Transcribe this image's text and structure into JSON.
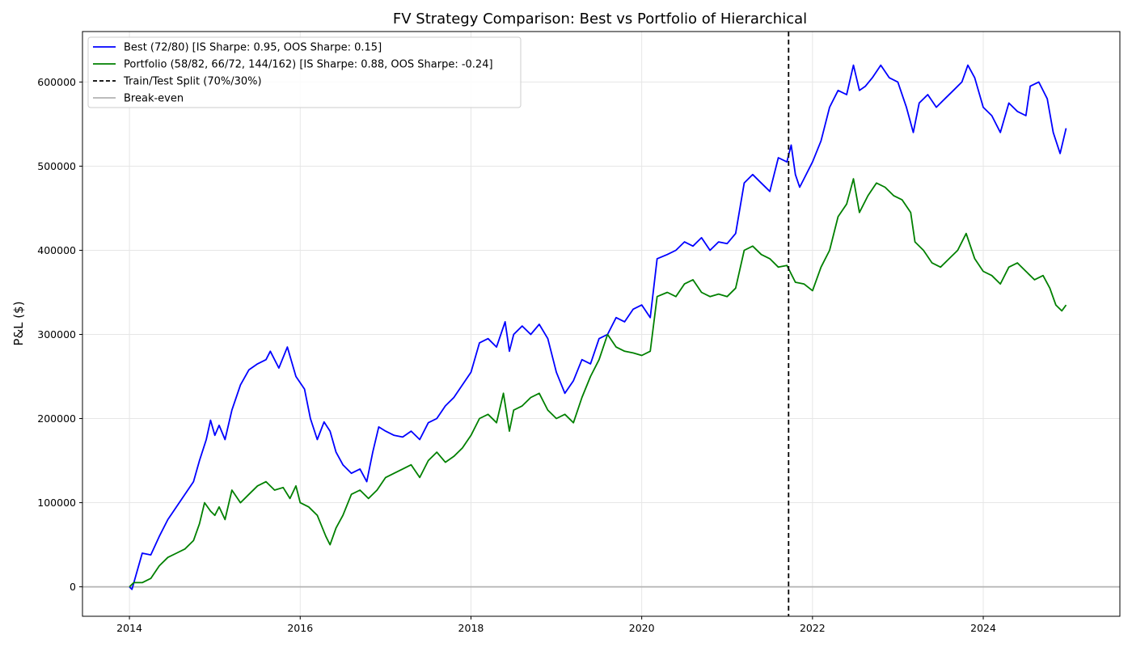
{
  "chart_data": {
    "type": "line",
    "title": "FV Strategy Comparison: Best vs Portfolio of Hierarchical",
    "xlabel": "",
    "ylabel": "P&L ($)",
    "xlim": [
      2013.45,
      2025.6
    ],
    "ylim": [
      -35000,
      660000
    ],
    "xticks": [
      2014,
      2016,
      2018,
      2020,
      2022,
      2024
    ],
    "yticks": [
      0,
      100000,
      200000,
      300000,
      400000,
      500000,
      600000
    ],
    "grid": true,
    "legend_position": "top-left",
    "split": {
      "x": 2021.72,
      "label": "Train/Test Split (70%/30%)",
      "color": "#000000"
    },
    "baseline": {
      "y": 0,
      "label": "Break-even",
      "color": "#b3b3b3"
    },
    "series": [
      {
        "name": "Best (72/80) [IS Sharpe: 0.95, OOS Sharpe: 0.15]",
        "color": "#0000ff",
        "points": [
          [
            2014.0,
            0
          ],
          [
            2014.03,
            -3000
          ],
          [
            2014.08,
            15000
          ],
          [
            2014.15,
            40000
          ],
          [
            2014.25,
            38000
          ],
          [
            2014.35,
            60000
          ],
          [
            2014.45,
            80000
          ],
          [
            2014.55,
            95000
          ],
          [
            2014.65,
            110000
          ],
          [
            2014.75,
            125000
          ],
          [
            2014.82,
            150000
          ],
          [
            2014.9,
            175000
          ],
          [
            2014.95,
            198000
          ],
          [
            2015.0,
            180000
          ],
          [
            2015.05,
            192000
          ],
          [
            2015.12,
            175000
          ],
          [
            2015.2,
            210000
          ],
          [
            2015.3,
            240000
          ],
          [
            2015.4,
            258000
          ],
          [
            2015.5,
            265000
          ],
          [
            2015.6,
            270000
          ],
          [
            2015.65,
            280000
          ],
          [
            2015.75,
            260000
          ],
          [
            2015.85,
            285000
          ],
          [
            2015.95,
            250000
          ],
          [
            2016.05,
            235000
          ],
          [
            2016.12,
            200000
          ],
          [
            2016.2,
            175000
          ],
          [
            2016.28,
            196000
          ],
          [
            2016.35,
            185000
          ],
          [
            2016.42,
            160000
          ],
          [
            2016.5,
            145000
          ],
          [
            2016.6,
            135000
          ],
          [
            2016.7,
            140000
          ],
          [
            2016.78,
            125000
          ],
          [
            2016.85,
            160000
          ],
          [
            2016.92,
            190000
          ],
          [
            2017.0,
            185000
          ],
          [
            2017.1,
            180000
          ],
          [
            2017.2,
            178000
          ],
          [
            2017.3,
            185000
          ],
          [
            2017.4,
            175000
          ],
          [
            2017.5,
            195000
          ],
          [
            2017.6,
            200000
          ],
          [
            2017.7,
            215000
          ],
          [
            2017.8,
            225000
          ],
          [
            2017.9,
            240000
          ],
          [
            2018.0,
            255000
          ],
          [
            2018.1,
            290000
          ],
          [
            2018.2,
            295000
          ],
          [
            2018.3,
            285000
          ],
          [
            2018.4,
            315000
          ],
          [
            2018.45,
            280000
          ],
          [
            2018.5,
            300000
          ],
          [
            2018.6,
            310000
          ],
          [
            2018.7,
            300000
          ],
          [
            2018.8,
            312000
          ],
          [
            2018.9,
            295000
          ],
          [
            2019.0,
            255000
          ],
          [
            2019.1,
            230000
          ],
          [
            2019.2,
            245000
          ],
          [
            2019.3,
            270000
          ],
          [
            2019.4,
            265000
          ],
          [
            2019.5,
            295000
          ],
          [
            2019.6,
            300000
          ],
          [
            2019.7,
            320000
          ],
          [
            2019.8,
            315000
          ],
          [
            2019.9,
            330000
          ],
          [
            2020.0,
            335000
          ],
          [
            2020.1,
            320000
          ],
          [
            2020.18,
            390000
          ],
          [
            2020.3,
            395000
          ],
          [
            2020.4,
            400000
          ],
          [
            2020.5,
            410000
          ],
          [
            2020.6,
            405000
          ],
          [
            2020.7,
            415000
          ],
          [
            2020.8,
            400000
          ],
          [
            2020.9,
            410000
          ],
          [
            2021.0,
            408000
          ],
          [
            2021.1,
            420000
          ],
          [
            2021.2,
            480000
          ],
          [
            2021.3,
            490000
          ],
          [
            2021.4,
            480000
          ],
          [
            2021.5,
            470000
          ],
          [
            2021.6,
            510000
          ],
          [
            2021.7,
            505000
          ],
          [
            2021.75,
            525000
          ],
          [
            2021.8,
            490000
          ],
          [
            2021.85,
            475000
          ],
          [
            2021.9,
            485000
          ],
          [
            2022.0,
            505000
          ],
          [
            2022.1,
            530000
          ],
          [
            2022.2,
            570000
          ],
          [
            2022.3,
            590000
          ],
          [
            2022.4,
            585000
          ],
          [
            2022.48,
            620000
          ],
          [
            2022.55,
            590000
          ],
          [
            2022.62,
            595000
          ],
          [
            2022.7,
            605000
          ],
          [
            2022.8,
            620000
          ],
          [
            2022.9,
            605000
          ],
          [
            2023.0,
            600000
          ],
          [
            2023.1,
            570000
          ],
          [
            2023.18,
            540000
          ],
          [
            2023.25,
            575000
          ],
          [
            2023.35,
            585000
          ],
          [
            2023.45,
            570000
          ],
          [
            2023.55,
            580000
          ],
          [
            2023.65,
            590000
          ],
          [
            2023.75,
            600000
          ],
          [
            2023.82,
            620000
          ],
          [
            2023.9,
            605000
          ],
          [
            2024.0,
            570000
          ],
          [
            2024.1,
            560000
          ],
          [
            2024.2,
            540000
          ],
          [
            2024.3,
            575000
          ],
          [
            2024.4,
            565000
          ],
          [
            2024.5,
            560000
          ],
          [
            2024.55,
            595000
          ],
          [
            2024.65,
            600000
          ],
          [
            2024.75,
            580000
          ],
          [
            2024.82,
            540000
          ],
          [
            2024.9,
            515000
          ],
          [
            2024.97,
            545000
          ]
        ]
      },
      {
        "name": "Portfolio (58/82, 66/72, 144/162) [IS Sharpe: 0.88, OOS Sharpe: -0.24]",
        "color": "#008000",
        "points": [
          [
            2014.0,
            0
          ],
          [
            2014.05,
            5000
          ],
          [
            2014.15,
            5000
          ],
          [
            2014.25,
            10000
          ],
          [
            2014.35,
            25000
          ],
          [
            2014.45,
            35000
          ],
          [
            2014.55,
            40000
          ],
          [
            2014.65,
            45000
          ],
          [
            2014.75,
            55000
          ],
          [
            2014.82,
            75000
          ],
          [
            2014.88,
            100000
          ],
          [
            2014.95,
            90000
          ],
          [
            2015.0,
            85000
          ],
          [
            2015.05,
            95000
          ],
          [
            2015.12,
            80000
          ],
          [
            2015.2,
            115000
          ],
          [
            2015.3,
            100000
          ],
          [
            2015.4,
            110000
          ],
          [
            2015.5,
            120000
          ],
          [
            2015.6,
            125000
          ],
          [
            2015.7,
            115000
          ],
          [
            2015.8,
            118000
          ],
          [
            2015.88,
            105000
          ],
          [
            2015.95,
            120000
          ],
          [
            2016.0,
            100000
          ],
          [
            2016.1,
            95000
          ],
          [
            2016.2,
            85000
          ],
          [
            2016.3,
            60000
          ],
          [
            2016.35,
            50000
          ],
          [
            2016.42,
            70000
          ],
          [
            2016.5,
            85000
          ],
          [
            2016.6,
            110000
          ],
          [
            2016.7,
            115000
          ],
          [
            2016.8,
            105000
          ],
          [
            2016.9,
            115000
          ],
          [
            2017.0,
            130000
          ],
          [
            2017.1,
            135000
          ],
          [
            2017.2,
            140000
          ],
          [
            2017.3,
            145000
          ],
          [
            2017.4,
            130000
          ],
          [
            2017.5,
            150000
          ],
          [
            2017.6,
            160000
          ],
          [
            2017.7,
            148000
          ],
          [
            2017.8,
            155000
          ],
          [
            2017.9,
            165000
          ],
          [
            2018.0,
            180000
          ],
          [
            2018.1,
            200000
          ],
          [
            2018.2,
            205000
          ],
          [
            2018.3,
            195000
          ],
          [
            2018.38,
            230000
          ],
          [
            2018.45,
            185000
          ],
          [
            2018.5,
            210000
          ],
          [
            2018.6,
            215000
          ],
          [
            2018.7,
            225000
          ],
          [
            2018.8,
            230000
          ],
          [
            2018.9,
            210000
          ],
          [
            2019.0,
            200000
          ],
          [
            2019.1,
            205000
          ],
          [
            2019.2,
            195000
          ],
          [
            2019.3,
            225000
          ],
          [
            2019.4,
            250000
          ],
          [
            2019.5,
            270000
          ],
          [
            2019.6,
            300000
          ],
          [
            2019.7,
            285000
          ],
          [
            2019.8,
            280000
          ],
          [
            2019.9,
            278000
          ],
          [
            2020.0,
            275000
          ],
          [
            2020.1,
            280000
          ],
          [
            2020.18,
            345000
          ],
          [
            2020.3,
            350000
          ],
          [
            2020.4,
            345000
          ],
          [
            2020.5,
            360000
          ],
          [
            2020.6,
            365000
          ],
          [
            2020.7,
            350000
          ],
          [
            2020.8,
            345000
          ],
          [
            2020.9,
            348000
          ],
          [
            2021.0,
            345000
          ],
          [
            2021.1,
            355000
          ],
          [
            2021.2,
            400000
          ],
          [
            2021.3,
            405000
          ],
          [
            2021.4,
            395000
          ],
          [
            2021.5,
            390000
          ],
          [
            2021.6,
            380000
          ],
          [
            2021.7,
            382000
          ],
          [
            2021.8,
            362000
          ],
          [
            2021.9,
            360000
          ],
          [
            2022.0,
            352000
          ],
          [
            2022.1,
            380000
          ],
          [
            2022.2,
            400000
          ],
          [
            2022.3,
            440000
          ],
          [
            2022.4,
            455000
          ],
          [
            2022.48,
            485000
          ],
          [
            2022.55,
            445000
          ],
          [
            2022.65,
            465000
          ],
          [
            2022.75,
            480000
          ],
          [
            2022.85,
            475000
          ],
          [
            2022.95,
            465000
          ],
          [
            2023.05,
            460000
          ],
          [
            2023.15,
            445000
          ],
          [
            2023.2,
            410000
          ],
          [
            2023.3,
            400000
          ],
          [
            2023.4,
            385000
          ],
          [
            2023.5,
            380000
          ],
          [
            2023.6,
            390000
          ],
          [
            2023.7,
            400000
          ],
          [
            2023.8,
            420000
          ],
          [
            2023.9,
            390000
          ],
          [
            2024.0,
            375000
          ],
          [
            2024.1,
            370000
          ],
          [
            2024.2,
            360000
          ],
          [
            2024.3,
            380000
          ],
          [
            2024.4,
            385000
          ],
          [
            2024.5,
            375000
          ],
          [
            2024.6,
            365000
          ],
          [
            2024.7,
            370000
          ],
          [
            2024.78,
            355000
          ],
          [
            2024.85,
            335000
          ],
          [
            2024.92,
            328000
          ],
          [
            2024.97,
            335000
          ]
        ]
      }
    ],
    "legend_entries": [
      {
        "label": "Best (72/80) [IS Sharpe: 0.95, OOS Sharpe: 0.15]",
        "color": "#0000ff",
        "style": "solid"
      },
      {
        "label": "Portfolio (58/82, 66/72, 144/162) [IS Sharpe: 0.88, OOS Sharpe: -0.24]",
        "color": "#008000",
        "style": "solid"
      },
      {
        "label": "Train/Test Split (70%/30%)",
        "color": "#000000",
        "style": "dashed"
      },
      {
        "label": "Break-even",
        "color": "#b3b3b3",
        "style": "solid"
      }
    ]
  }
}
